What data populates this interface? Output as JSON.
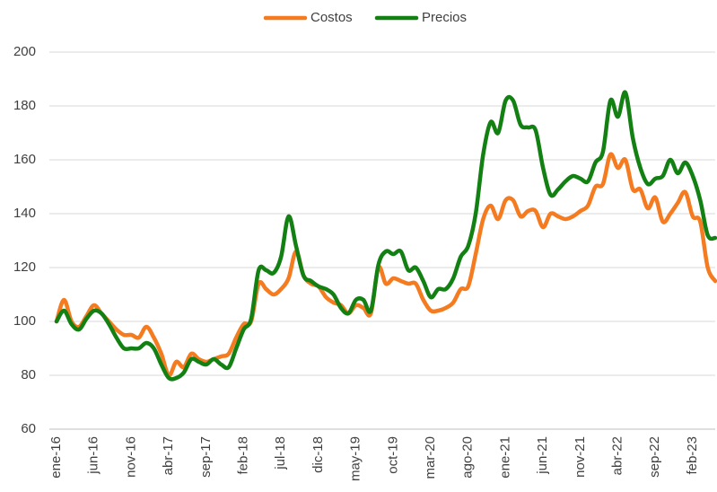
{
  "chart_data": {
    "type": "line",
    "categories": [
      "ene-16",
      null,
      null,
      null,
      null,
      "jun-16",
      null,
      null,
      null,
      null,
      "nov-16",
      null,
      null,
      null,
      null,
      "abr-17",
      null,
      null,
      null,
      null,
      "sep-17",
      null,
      null,
      null,
      null,
      "feb-18",
      null,
      null,
      null,
      null,
      "jul-18",
      null,
      null,
      null,
      null,
      "dic-18",
      null,
      null,
      null,
      null,
      "may-19",
      null,
      null,
      null,
      null,
      "oct-19",
      null,
      null,
      null,
      null,
      "mar-20",
      null,
      null,
      null,
      null,
      "ago-20",
      null,
      null,
      null,
      null,
      "ene-21",
      null,
      null,
      null,
      null,
      "jun-21",
      null,
      null,
      null,
      null,
      "nov-21",
      null,
      null,
      null,
      null,
      "abr-22",
      null,
      null,
      null,
      null,
      "sep-22",
      null,
      null,
      null,
      null,
      "feb-23",
      null,
      null,
      null
    ],
    "series": [
      {
        "name": "Costos",
        "color": "#f47b20",
        "values": [
          100,
          108,
          100,
          98,
          102,
          106,
          103,
          100,
          97,
          95,
          95,
          94,
          98,
          94,
          88,
          80,
          85,
          83,
          88,
          86,
          85,
          86,
          87,
          88,
          94,
          99,
          100,
          114,
          112,
          110,
          112,
          116,
          126,
          117,
          114,
          113,
          109,
          107,
          106,
          103,
          106,
          105,
          103,
          120,
          114,
          116,
          115,
          114,
          114,
          108,
          104,
          104,
          105,
          107,
          112,
          113,
          125,
          138,
          143,
          138,
          145,
          145,
          139,
          141,
          141,
          135,
          140,
          139,
          138,
          139,
          141,
          143,
          150,
          151,
          162,
          157,
          160,
          149,
          149,
          142,
          146,
          137,
          140,
          144,
          148,
          139,
          137,
          120,
          115
        ]
      },
      {
        "name": "Precios",
        "color": "#138013",
        "values": [
          100,
          104,
          99,
          97,
          101,
          104,
          103,
          99,
          94,
          90,
          90,
          90,
          92,
          90,
          84,
          79,
          79,
          81,
          86,
          85,
          84,
          86,
          84,
          83,
          90,
          97,
          101,
          119,
          119,
          118,
          124,
          139,
          128,
          117,
          115,
          113,
          112,
          110,
          105,
          103,
          108,
          108,
          104,
          121,
          126,
          125,
          126,
          119,
          120,
          115,
          109,
          112,
          112,
          116,
          124,
          128,
          140,
          162,
          174,
          170,
          182,
          182,
          173,
          172,
          171,
          157,
          147,
          149,
          152,
          154,
          153,
          152,
          159,
          163,
          182,
          176,
          185,
          168,
          157,
          151,
          153,
          154,
          160,
          155,
          159,
          154,
          145,
          132,
          131
        ]
      }
    ],
    "ylim": [
      60,
      200
    ],
    "yticks": [
      60,
      80,
      100,
      120,
      140,
      160,
      180,
      200
    ],
    "grid": true,
    "legend": "top"
  }
}
